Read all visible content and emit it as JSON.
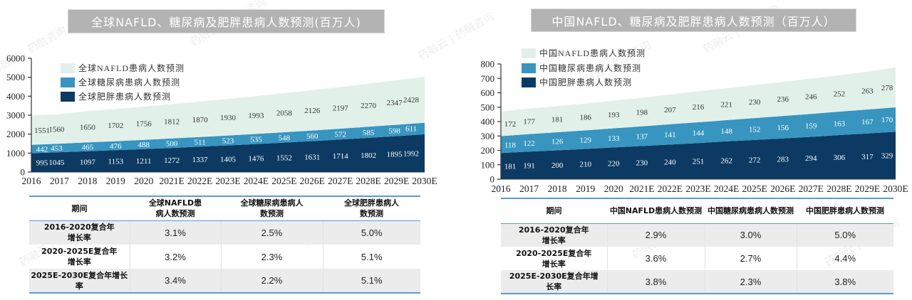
{
  "chart_data": [
    {
      "type": "area",
      "stacked": true,
      "title": "全球NAFLD、糖尿病及肥胖患病人数预测(百万人)",
      "xlabel": "",
      "ylabel": "",
      "categories": [
        "2016",
        "2017",
        "2018",
        "2019",
        "2020",
        "2021E",
        "2022E",
        "2023E",
        "2024E",
        "2025E",
        "2026E",
        "2027E",
        "2028E",
        "2029E",
        "2030E"
      ],
      "ylim": [
        0,
        6000
      ],
      "yticks": [
        0,
        1000,
        2000,
        3000,
        4000,
        5000,
        6000
      ],
      "grid": false,
      "legend": "top-left",
      "series": [
        {
          "name": "全球肥胖患病人数预测",
          "color": "#0c3a62",
          "label_color": "#ffffff",
          "values": [
            995,
            1045,
            1097,
            1153,
            1211,
            1272,
            1337,
            1405,
            1476,
            1552,
            1631,
            1714,
            1802,
            1895,
            1992
          ]
        },
        {
          "name": "全球糖尿病患病人数预测",
          "color": "#3795c0",
          "label_color": "#ffffff",
          "values": [
            442,
            453,
            465,
            476,
            488,
            500,
            511,
            523,
            535,
            548,
            560,
            572,
            585,
            598,
            611
          ]
        },
        {
          "name": "全球NAFLD患病人数预测",
          "color": "#e2f0ea",
          "label_color": "#333333",
          "values": [
            1551,
            1560,
            1650,
            1702,
            1756,
            1812,
            1870,
            1930,
            1993,
            2058,
            2126,
            2197,
            2270,
            2347,
            2428
          ]
        }
      ]
    },
    {
      "type": "area",
      "stacked": true,
      "title": "中国NAFLD、糖尿病及肥胖患病人数预测（百万人）",
      "xlabel": "",
      "ylabel": "",
      "categories": [
        "2016",
        "2017",
        "2018",
        "2019",
        "2020",
        "2021E",
        "2022E",
        "2023E",
        "2024E",
        "2025E",
        "2026E",
        "2027E",
        "2028E",
        "2029E",
        "2030E"
      ],
      "ylim": [
        0,
        800
      ],
      "yticks": [
        0,
        100,
        200,
        300,
        400,
        500,
        600,
        700,
        800
      ],
      "grid": false,
      "legend": "top-left",
      "series": [
        {
          "name": "中国肥胖患病人数预测",
          "color": "#0c3a62",
          "label_color": "#ffffff",
          "values": [
            181,
            191,
            200,
            210,
            220,
            230,
            240,
            251,
            262,
            272,
            283,
            294,
            306,
            317,
            329
          ]
        },
        {
          "name": "中国糖尿病患病人数预测",
          "color": "#3795c0",
          "label_color": "#ffffff",
          "values": [
            118,
            122,
            126,
            129,
            133,
            137,
            141,
            144,
            148,
            152,
            156,
            159,
            163,
            167,
            170
          ]
        },
        {
          "name": "中国NAFLD患病人数预测",
          "color": "#e2f0ea",
          "label_color": "#333333",
          "values": [
            172,
            177,
            181,
            186,
            193,
            198,
            207,
            216,
            221,
            230,
            236,
            246,
            252,
            263,
            278
          ]
        }
      ]
    }
  ],
  "tables": [
    {
      "header": [
        "期间",
        "全球NAFLD患病人数预测",
        "全球糖尿病患病人数预测",
        "全球肥胖患病人数预测"
      ],
      "rows": [
        [
          "2016-2020复合年增长率",
          "3.1%",
          "2.5%",
          "5.0%"
        ],
        [
          "2020-2025E复合年增长率",
          "3.2%",
          "2.3%",
          "5.1%"
        ],
        [
          "2025E-2030E复合年增长率",
          "3.4%",
          "2.2%",
          "5.1%"
        ]
      ]
    },
    {
      "header": [
        "期间",
        "中国NAFLD患病人数预测",
        "中国糖尿病患病人数预测",
        "中国肥胖患病人数预测"
      ],
      "rows": [
        [
          "2016-2020复合年增长率",
          "2.9%",
          "3.0%",
          "5.0%"
        ],
        [
          "2020-2025E复合年增长率",
          "3.6%",
          "2.7%",
          "4.4%"
        ],
        [
          "2025E-2030E复合年增长率",
          "3.8%",
          "2.3%",
          "3.8%"
        ]
      ]
    }
  ],
  "watermark": {
    "text": "药融云 | 药融咨询"
  },
  "colors": {
    "title_bg": "#b3b3b3",
    "table_rule": "#5b9bd5",
    "row_shade": "#ececec"
  }
}
